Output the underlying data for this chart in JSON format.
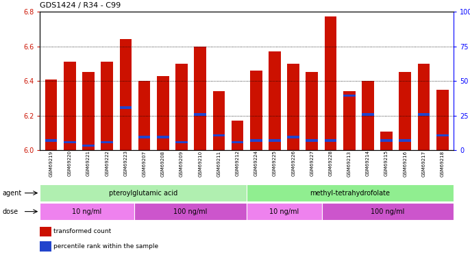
{
  "title": "GDS1424 / R34 - C99",
  "samples": [
    "GSM69219",
    "GSM69220",
    "GSM69221",
    "GSM69222",
    "GSM69223",
    "GSM69207",
    "GSM69208",
    "GSM69209",
    "GSM69210",
    "GSM69211",
    "GSM69212",
    "GSM69224",
    "GSM69225",
    "GSM69226",
    "GSM69227",
    "GSM69228",
    "GSM69213",
    "GSM69214",
    "GSM69215",
    "GSM69216",
    "GSM69217",
    "GSM69218"
  ],
  "red_values": [
    6.41,
    6.51,
    6.45,
    6.51,
    6.64,
    6.4,
    6.43,
    6.5,
    6.6,
    6.34,
    6.17,
    6.46,
    6.57,
    6.5,
    6.45,
    6.77,
    6.34,
    6.4,
    6.11,
    6.45,
    6.5,
    6.35
  ],
  "blue_values": [
    6.05,
    6.04,
    6.02,
    6.04,
    6.24,
    6.07,
    6.07,
    6.04,
    6.2,
    6.08,
    6.04,
    6.05,
    6.05,
    6.07,
    6.05,
    6.05,
    6.31,
    6.2,
    6.05,
    6.05,
    6.2,
    6.08
  ],
  "ymin": 6.0,
  "ymax": 6.8,
  "yticks": [
    6.0,
    6.2,
    6.4,
    6.6,
    6.8
  ],
  "right_yticks": [
    0,
    25,
    50,
    75,
    100
  ],
  "bar_color": "#cc1100",
  "blue_color": "#2244cc",
  "bg_color": "#ffffff",
  "plot_bg": "#ffffff",
  "agent_groups_raw": [
    [
      0,
      11,
      "pteroylglutamic acid",
      "#b0efb0"
    ],
    [
      11,
      22,
      "methyl-tetrahydrofolate",
      "#90ee90"
    ]
  ],
  "dose_groups_raw": [
    [
      0,
      5,
      "10 ng/ml",
      "#ee82ee"
    ],
    [
      5,
      11,
      "100 ng/ml",
      "#cc55cc"
    ],
    [
      11,
      15,
      "10 ng/ml",
      "#ee82ee"
    ],
    [
      15,
      22,
      "100 ng/ml",
      "#cc55cc"
    ]
  ],
  "legend_items": [
    {
      "label": "transformed count",
      "color": "#cc1100"
    },
    {
      "label": "percentile rank within the sample",
      "color": "#2244cc"
    }
  ],
  "n_bars": 22,
  "blue_thickness": 0.013
}
